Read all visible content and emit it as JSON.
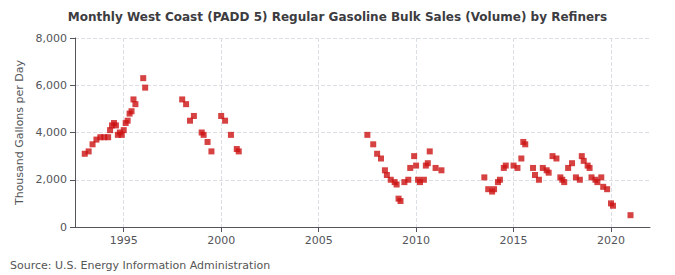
{
  "chart_data": {
    "type": "scatter",
    "title": "Monthly West Coast (PADD 5) Regular Gasoline Bulk Sales (Volume) by Refiners",
    "ylabel": "Thousand Gallons per Day",
    "annotations": [
      "Source: U.S. Energy Information Administration"
    ],
    "color": "#cc1111",
    "marker": "square",
    "grid": true,
    "xlim": [
      1992.5,
      2022.0
    ],
    "ylim": [
      0,
      8000
    ],
    "xticks": [
      1995,
      2000,
      2005,
      2010,
      2015,
      2020
    ],
    "yticks": [
      0,
      {
        "value": 2000,
        "label": "2,000"
      },
      {
        "value": 4000,
        "label": "4,000"
      },
      {
        "value": 6000,
        "label": "6,000"
      },
      {
        "value": 8000,
        "label": "8,000"
      }
    ],
    "x": [
      1993.0,
      1993.2,
      1993.4,
      1993.6,
      1993.8,
      1994.0,
      1994.2,
      1994.3,
      1994.4,
      1994.5,
      1994.6,
      1994.7,
      1994.8,
      1994.9,
      1995.0,
      1995.1,
      1995.2,
      1995.3,
      1995.4,
      1995.5,
      1995.6,
      1996.0,
      1996.1,
      1998.0,
      1998.2,
      1998.4,
      1998.6,
      1999.0,
      1999.1,
      1999.3,
      1999.5,
      2000.0,
      2000.2,
      2000.5,
      2000.8,
      2000.9,
      2007.5,
      2007.8,
      2008.0,
      2008.2,
      2008.4,
      2008.5,
      2008.7,
      2008.9,
      2009.0,
      2009.1,
      2009.2,
      2009.4,
      2009.6,
      2009.7,
      2009.9,
      2010.0,
      2010.1,
      2010.2,
      2010.4,
      2010.5,
      2010.6,
      2010.7,
      2011.0,
      2011.3,
      2013.5,
      2013.7,
      2013.9,
      2014.0,
      2014.2,
      2014.3,
      2014.5,
      2014.6,
      2015.0,
      2015.2,
      2015.4,
      2015.5,
      2015.6,
      2016.0,
      2016.1,
      2016.3,
      2016.5,
      2016.7,
      2016.8,
      2017.0,
      2017.2,
      2017.4,
      2017.5,
      2017.6,
      2017.8,
      2018.0,
      2018.2,
      2018.4,
      2018.5,
      2018.6,
      2018.8,
      2018.9,
      2019.0,
      2019.2,
      2019.3,
      2019.5,
      2019.6,
      2019.8,
      2020.0,
      2020.1,
      2021.0
    ],
    "values": [
      3100,
      3200,
      3500,
      3700,
      3800,
      3800,
      3800,
      4100,
      4300,
      4400,
      4300,
      3900,
      4000,
      3900,
      4100,
      4400,
      4500,
      4800,
      4900,
      5400,
      5200,
      6300,
      5900,
      5400,
      5200,
      4500,
      4700,
      4000,
      3900,
      3600,
      3200,
      4700,
      4500,
      3900,
      3300,
      3200,
      3900,
      3500,
      3100,
      2900,
      2400,
      2200,
      2000,
      1900,
      1800,
      1200,
      1100,
      1900,
      2000,
      2500,
      3000,
      2600,
      2000,
      1900,
      2000,
      2600,
      2700,
      3200,
      2500,
      2400,
      2100,
      1600,
      1500,
      1600,
      1900,
      2000,
      2500,
      2600,
      2600,
      2500,
      2900,
      3600,
      3500,
      2500,
      2200,
      2000,
      2500,
      2400,
      2300,
      3000,
      2900,
      2100,
      2000,
      1900,
      2500,
      2700,
      2100,
      2000,
      3000,
      2800,
      2600,
      2500,
      2100,
      2000,
      1900,
      2100,
      1700,
      1600,
      1000,
      900,
      500
    ]
  }
}
